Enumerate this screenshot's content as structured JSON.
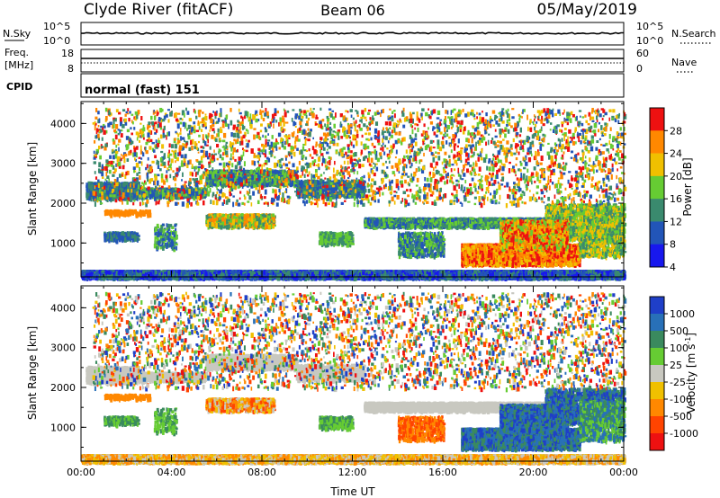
{
  "header": {
    "radar": "Clyde River (fitACF)",
    "beam": "Beam 06",
    "date": "05/May/2019"
  },
  "status_panels": {
    "nsky_label": "N.Sky",
    "nsearch_label": "N.Search",
    "noise_ticks": [
      "10^5",
      "10^0"
    ],
    "freq_label_line1": "Freq.",
    "freq_label_line2": "[MHz]",
    "freq_ticks": [
      18,
      8
    ],
    "nave_label": "Nave",
    "nave_ticks": [
      60,
      0
    ],
    "cpid_label": "CPID",
    "cpid_value": "normal (fast) 151"
  },
  "chart_data": [
    {
      "type": "heatmap",
      "name": "power-panel",
      "ylabel": "Slant Range [km]",
      "yticks": [
        1000,
        2000,
        3000,
        4000
      ],
      "ylim": [
        150,
        4550
      ],
      "xlim": [
        0,
        24
      ],
      "colorbar": {
        "label": "Power [dB]",
        "tick_labels": [
          "4",
          "8",
          "12",
          "16",
          "20",
          "24",
          "28"
        ],
        "colors": [
          "#1818ee",
          "#2255b8",
          "#3a8a6e",
          "#66cc33",
          "#f0c000",
          "#ff8800",
          "#ee1111"
        ]
      }
    },
    {
      "type": "heatmap",
      "name": "velocity-panel",
      "ylabel": "Slant Range [km]",
      "yticks": [
        1000,
        2000,
        3000,
        4000
      ],
      "ylim": [
        150,
        4550
      ],
      "xlim": [
        0,
        24
      ],
      "xlabel": "Time UT",
      "xtick_labels": [
        "00:00",
        "04:00",
        "08:00",
        "12:00",
        "16:00",
        "20:00",
        "00:00"
      ],
      "colorbar": {
        "label": "Velocity",
        "unit": "[m s",
        "unit_exp": "-1",
        "unit_close": "]",
        "tick_labels": [
          "1000",
          "500",
          "100",
          "25",
          "-25",
          "-100",
          "-500",
          "-1000"
        ],
        "colors": [
          "#1f3fc8",
          "#2870b8",
          "#3a8a5e",
          "#66cc33",
          "#c8c8c0",
          "#f0c000",
          "#ff8800",
          "#ff4400",
          "#ee1111"
        ]
      }
    }
  ]
}
